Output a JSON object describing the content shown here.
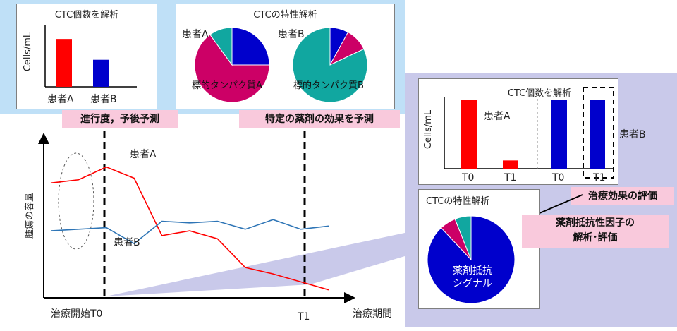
{
  "colors": {
    "red": "#ff0000",
    "blue": "#0000cc",
    "teal": "#11a7a0",
    "magenta": "#cc0066",
    "light_blue_bg": "#bfe0f7",
    "lavender_bg": "#c9c9ea",
    "pink_box": "#f9c9dc",
    "line_blue": "#2e75b6"
  },
  "top_left_panel": {
    "title": "CTC個数を解析",
    "ylabel": "Cells/mL",
    "categories": [
      "患者A",
      "患者B"
    ]
  },
  "top_mid_panel": {
    "title": "CTCの特性解析",
    "pie_a_patient": "患者A",
    "pie_a_label": "標的タンパク質A",
    "pie_b_patient": "患者B",
    "pie_b_label": "標的タンパク質B"
  },
  "progress_box": "進行度，予後予測",
  "drug_effect_box": "特定の薬剤の効果を予測",
  "main_chart": {
    "ylabel": "腫瘍の容量",
    "xlabel": "治療期間",
    "t0_label": "治療開始T0",
    "t1_label": "T1",
    "patient_a": "患者A",
    "patient_b": "患者B"
  },
  "right_top_panel": {
    "title": "CTC個数を解析",
    "ylabel": "Cells/mL",
    "patient_a": "患者A",
    "patient_b": "患者B",
    "ticks": [
      "T0",
      "T1",
      "T0",
      "T1"
    ]
  },
  "treatment_eval_box": "治療効果の評価",
  "right_bottom_panel": {
    "title": "CTCの特性解析",
    "pie_label_line1": "薬剤抵抗",
    "pie_label_line2": "シグナル"
  },
  "resistance_box_line1": "薬剤抵抗性因子の",
  "resistance_box_line2": "解析･評価",
  "chart_data": [
    {
      "type": "bar",
      "categories": [
        "患者A",
        "患者B"
      ],
      "values": [
        78,
        44
      ],
      "ylabel": "Cells/mL"
    },
    {
      "type": "pie",
      "title": "患者A",
      "slices": [
        {
          "name": "",
          "value": 25,
          "color": "#0000cc"
        },
        {
          "name": "標的タンパク質A",
          "value": 65,
          "color": "#cc0066"
        },
        {
          "name": "",
          "value": 10,
          "color": "#11a7a0"
        }
      ]
    },
    {
      "type": "pie",
      "title": "患者B",
      "slices": [
        {
          "name": "",
          "value": 8,
          "color": "#0000cc"
        },
        {
          "name": "",
          "value": 10,
          "color": "#cc0066"
        },
        {
          "name": "標的タンパク質B",
          "value": 82,
          "color": "#11a7a0"
        }
      ]
    },
    {
      "type": "line",
      "xlabel": "治療期間",
      "ylabel": "腫瘍の容量",
      "x": [
        0,
        1,
        2,
        3,
        4,
        5,
        6,
        7,
        8,
        9,
        10
      ],
      "series": [
        {
          "name": "患者A",
          "values": [
            72,
            74,
            82,
            75,
            39,
            42,
            37,
            19,
            15,
            10,
            5
          ]
        },
        {
          "name": "患者B",
          "values": [
            42,
            43,
            44,
            34,
            48,
            47,
            48,
            43,
            49,
            43,
            45
          ]
        }
      ]
    },
    {
      "type": "bar",
      "categories": [
        "T0",
        "T1",
        "T0",
        "T1"
      ],
      "series_groups": [
        "患者A",
        "患者A",
        "患者B",
        "患者B"
      ],
      "values": [
        100,
        12,
        100,
        100
      ],
      "ylabel": "Cells/mL"
    },
    {
      "type": "pie",
      "slices": [
        {
          "name": "薬剤抵抗シグナル",
          "value": 88,
          "color": "#0000cc"
        },
        {
          "name": "",
          "value": 6,
          "color": "#cc0066"
        },
        {
          "name": "",
          "value": 6,
          "color": "#11a7a0"
        }
      ]
    }
  ]
}
